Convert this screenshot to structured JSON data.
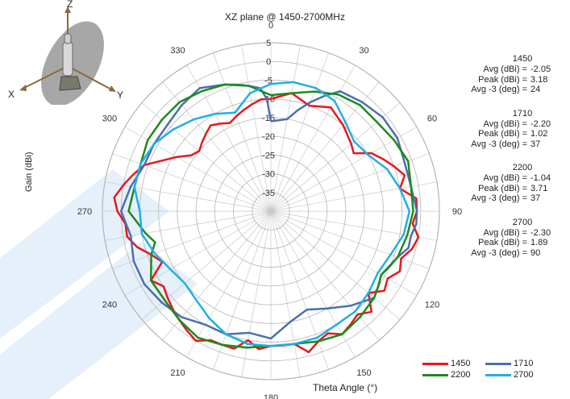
{
  "chart_data": {
    "type": "polar-line",
    "title": "XZ plane @ 1450-2700MHz",
    "radial_label": "Gain  (dBi)",
    "angle_label": "Theta  Angle (°)",
    "r_range": [
      -40,
      5
    ],
    "r_ticks": [
      5,
      0,
      -5,
      -10,
      -15,
      -20,
      -25,
      -30,
      -35
    ],
    "angle_ticks": [
      0,
      30,
      60,
      90,
      120,
      150,
      180,
      210,
      240,
      270,
      300,
      330
    ],
    "angle_direction": "clockwise, 0 at top",
    "grid": true,
    "legend_position": "bottom-right",
    "series": [
      {
        "name": "1450",
        "color": "#e8171c",
        "points": [
          [
            0,
            -10
          ],
          [
            10,
            -8
          ],
          [
            20,
            -10
          ],
          [
            30,
            -8
          ],
          [
            40,
            -10
          ],
          [
            50,
            -12
          ],
          [
            55,
            -13
          ],
          [
            60,
            -9
          ],
          [
            65,
            -7
          ],
          [
            70,
            -5
          ],
          [
            75,
            -3
          ],
          [
            80,
            -5
          ],
          [
            85,
            -1
          ],
          [
            90,
            -1
          ],
          [
            95,
            -2
          ],
          [
            100,
            0
          ],
          [
            105,
            -1
          ],
          [
            110,
            -3
          ],
          [
            115,
            -2
          ],
          [
            120,
            -4
          ],
          [
            125,
            -3
          ],
          [
            130,
            -6
          ],
          [
            135,
            -2
          ],
          [
            140,
            -4
          ],
          [
            145,
            -3
          ],
          [
            150,
            -2
          ],
          [
            155,
            -4
          ],
          [
            160,
            -3
          ],
          [
            165,
            -1
          ],
          [
            170,
            -4
          ],
          [
            175,
            -4
          ],
          [
            180,
            -4
          ],
          [
            185,
            -3
          ],
          [
            190,
            -5
          ],
          [
            195,
            -2
          ],
          [
            200,
            -2
          ],
          [
            205,
            -2
          ],
          [
            210,
            0
          ],
          [
            215,
            -1
          ],
          [
            220,
            -2
          ],
          [
            225,
            -3
          ],
          [
            230,
            -4
          ],
          [
            235,
            -5
          ],
          [
            240,
            -3
          ],
          [
            245,
            -8
          ],
          [
            250,
            -6
          ],
          [
            255,
            -3
          ],
          [
            260,
            -1
          ],
          [
            265,
            -1
          ],
          [
            270,
            1
          ],
          [
            275,
            2
          ],
          [
            280,
            0
          ],
          [
            285,
            -2
          ],
          [
            290,
            -4
          ],
          [
            295,
            -8
          ],
          [
            300,
            -11
          ],
          [
            305,
            -14
          ],
          [
            310,
            -15
          ],
          [
            315,
            -14
          ],
          [
            320,
            -13
          ],
          [
            325,
            -12
          ],
          [
            330,
            -13
          ],
          [
            335,
            -14
          ],
          [
            340,
            -13
          ],
          [
            345,
            -12
          ],
          [
            350,
            -11
          ],
          [
            355,
            -10
          ],
          [
            360,
            -10
          ]
        ]
      },
      {
        "name": "1710",
        "color": "#4c6fad",
        "points": [
          [
            0,
            -16
          ],
          [
            10,
            -15
          ],
          [
            15,
            -12
          ],
          [
            20,
            -9
          ],
          [
            25,
            -6
          ],
          [
            30,
            -3
          ],
          [
            40,
            -2
          ],
          [
            50,
            -1
          ],
          [
            60,
            -1
          ],
          [
            70,
            -2
          ],
          [
            80,
            -2
          ],
          [
            90,
            -1
          ],
          [
            95,
            -1
          ],
          [
            100,
            -2
          ],
          [
            105,
            -2
          ],
          [
            110,
            -4
          ],
          [
            115,
            -5
          ],
          [
            120,
            -6
          ],
          [
            125,
            -5
          ],
          [
            130,
            -4
          ],
          [
            140,
            -7
          ],
          [
            150,
            -10
          ],
          [
            160,
            -12
          ],
          [
            170,
            -10
          ],
          [
            180,
            -6
          ],
          [
            190,
            -7
          ],
          [
            200,
            -5
          ],
          [
            210,
            -5
          ],
          [
            220,
            -3
          ],
          [
            230,
            -2
          ],
          [
            240,
            -1
          ],
          [
            250,
            -1
          ],
          [
            260,
            -2
          ],
          [
            270,
            0
          ],
          [
            280,
            -2
          ],
          [
            290,
            -4
          ],
          [
            300,
            -4
          ],
          [
            310,
            -4
          ],
          [
            320,
            -3
          ],
          [
            330,
            -2
          ],
          [
            340,
            -4
          ],
          [
            345,
            -5
          ],
          [
            350,
            -6
          ],
          [
            355,
            -7
          ],
          [
            358,
            -10
          ],
          [
            360,
            -16
          ]
        ]
      },
      {
        "name": "2200",
        "color": "#1d8a1d",
        "points": [
          [
            0,
            -9
          ],
          [
            10,
            -8
          ],
          [
            20,
            -6
          ],
          [
            30,
            -4
          ],
          [
            40,
            -3
          ],
          [
            50,
            -3
          ],
          [
            60,
            -2
          ],
          [
            70,
            -1
          ],
          [
            80,
            -2
          ],
          [
            90,
            -2
          ],
          [
            100,
            -3
          ],
          [
            110,
            -4
          ],
          [
            120,
            -6
          ],
          [
            125,
            -5
          ],
          [
            130,
            -4
          ],
          [
            140,
            -3
          ],
          [
            150,
            -2
          ],
          [
            160,
            -3
          ],
          [
            170,
            -4
          ],
          [
            180,
            -4
          ],
          [
            190,
            -3
          ],
          [
            200,
            -2
          ],
          [
            210,
            -1
          ],
          [
            220,
            -2
          ],
          [
            230,
            -3
          ],
          [
            240,
            -3
          ],
          [
            250,
            -6
          ],
          [
            255,
            -8
          ],
          [
            260,
            -6
          ],
          [
            270,
            -2
          ],
          [
            280,
            -3
          ],
          [
            290,
            -3
          ],
          [
            300,
            -2
          ],
          [
            310,
            -2
          ],
          [
            320,
            -2
          ],
          [
            330,
            -3
          ],
          [
            340,
            -4
          ],
          [
            350,
            -6
          ],
          [
            360,
            -9
          ]
        ]
      },
      {
        "name": "2700",
        "color": "#22aee5",
        "points": [
          [
            0,
            -6
          ],
          [
            10,
            -5
          ],
          [
            20,
            -5
          ],
          [
            30,
            -6
          ],
          [
            40,
            -9
          ],
          [
            50,
            -11
          ],
          [
            60,
            -10
          ],
          [
            70,
            -7
          ],
          [
            80,
            -5
          ],
          [
            90,
            -3
          ],
          [
            100,
            -4
          ],
          [
            110,
            -6
          ],
          [
            120,
            -7
          ],
          [
            130,
            -6
          ],
          [
            140,
            -5
          ],
          [
            150,
            -5
          ],
          [
            160,
            -4
          ],
          [
            170,
            -4
          ],
          [
            180,
            -4
          ],
          [
            190,
            -4
          ],
          [
            200,
            -5
          ],
          [
            210,
            -7
          ],
          [
            220,
            -9
          ],
          [
            230,
            -10
          ],
          [
            240,
            -9
          ],
          [
            250,
            -7
          ],
          [
            260,
            -5
          ],
          [
            270,
            -5
          ],
          [
            280,
            -3
          ],
          [
            290,
            -3
          ],
          [
            300,
            -4
          ],
          [
            310,
            -6
          ],
          [
            320,
            -8
          ],
          [
            330,
            -10
          ],
          [
            340,
            -12
          ],
          [
            350,
            -8
          ],
          [
            360,
            -6
          ]
        ]
      }
    ],
    "stats": [
      {
        "freq": "1450",
        "avg": "-2.05",
        "peak": "3.18",
        "avg3": "24"
      },
      {
        "freq": "1710",
        "avg": "-2.20",
        "peak": "1.02",
        "avg3": "37"
      },
      {
        "freq": "2200",
        "avg": "-1.04",
        "peak": "3.71",
        "avg3": "37"
      },
      {
        "freq": "2700",
        "avg": "-2.30",
        "peak": "1.89",
        "avg3": "90"
      }
    ],
    "stat_labels": {
      "avg": "Avg (dBi) =",
      "peak": "Peak (dBi) =",
      "avg3": "Avg -3 (deg) ="
    }
  },
  "axes_icon": {
    "x": "X",
    "y": "Y",
    "z": "Z",
    "icon": "antenna-orientation-icon"
  }
}
